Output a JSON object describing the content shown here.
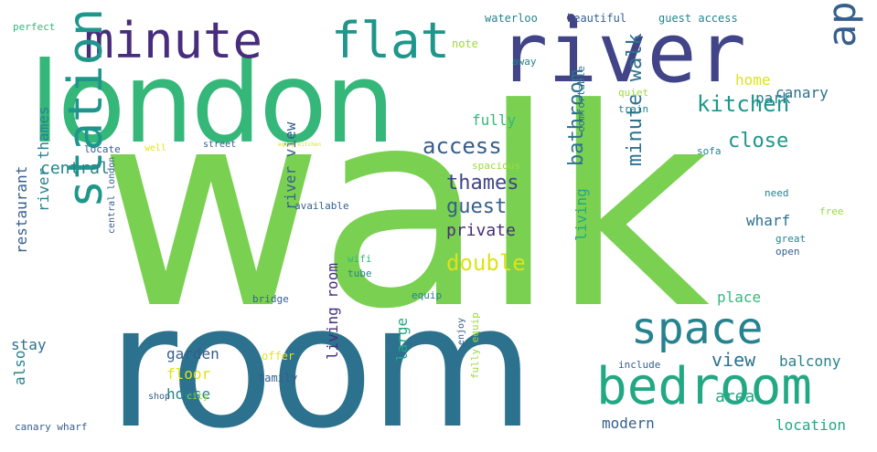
{
  "palette": {
    "background": "#ffffff",
    "yellow_green": "#9bd93c",
    "lime": "#7ad151",
    "green": "#35b779",
    "teal_green": "#22a884",
    "teal": "#1f968b",
    "blue_teal": "#26828e",
    "steel_blue": "#2c718e",
    "slate_blue": "#355f8d",
    "indigo": "#414487",
    "purple": "#472d7b",
    "yellow": "#dde318",
    "pale_yellow": "#e5e419"
  },
  "words": [
    {
      "text": "walk",
      "orientation": "horizontal",
      "color": "#7ad151"
    },
    {
      "text": "london",
      "orientation": "horizontal",
      "color": "#35b779"
    },
    {
      "text": "room",
      "orientation": "horizontal",
      "color": "#2c718e"
    },
    {
      "text": "river",
      "orientation": "horizontal",
      "color": "#414487"
    },
    {
      "text": "minute",
      "orientation": "horizontal",
      "color": "#472d7b"
    },
    {
      "text": "flat",
      "orientation": "horizontal",
      "color": "#1f968b"
    },
    {
      "text": "bedroom",
      "orientation": "horizontal",
      "color": "#22a884"
    },
    {
      "text": "space",
      "orientation": "horizontal",
      "color": "#26828e"
    },
    {
      "text": "apartment",
      "orientation": "vertical",
      "color": "#355f8d"
    },
    {
      "text": "station",
      "orientation": "vertical",
      "color": "#1f968b"
    },
    {
      "text": "kitchen",
      "orientation": "horizontal",
      "color": "#1f968b"
    },
    {
      "text": "access",
      "orientation": "horizontal",
      "color": "#355f8d"
    },
    {
      "text": "thames",
      "orientation": "horizontal",
      "color": "#414487"
    },
    {
      "text": "guest",
      "orientation": "horizontal",
      "color": "#355f8d"
    },
    {
      "text": "close",
      "orientation": "horizontal",
      "color": "#1f968b"
    },
    {
      "text": "bathroom",
      "orientation": "vertical",
      "color": "#2c718e"
    },
    {
      "text": "minute walk",
      "orientation": "vertical",
      "color": "#2c718e"
    },
    {
      "text": "double",
      "orientation": "horizontal",
      "color": "#dde318"
    },
    {
      "text": "private",
      "orientation": "horizontal",
      "color": "#472d7b"
    },
    {
      "text": "central",
      "orientation": "horizontal",
      "color": "#26828e"
    },
    {
      "text": "canary",
      "orientation": "horizontal",
      "color": "#2c718e"
    },
    {
      "text": "home",
      "orientation": "horizontal",
      "color": "#dde318"
    },
    {
      "text": "park",
      "orientation": "horizontal",
      "color": "#26828e"
    },
    {
      "text": "fully",
      "orientation": "horizontal",
      "color": "#35b779"
    },
    {
      "text": "living",
      "orientation": "vertical",
      "color": "#22a884"
    },
    {
      "text": "wharf",
      "orientation": "horizontal",
      "color": "#2c718e"
    },
    {
      "text": "view",
      "orientation": "horizontal",
      "color": "#2c718e"
    },
    {
      "text": "balcony",
      "orientation": "horizontal",
      "color": "#26828e"
    },
    {
      "text": "area",
      "orientation": "horizontal",
      "color": "#22a884"
    },
    {
      "text": "location",
      "orientation": "horizontal",
      "color": "#22a884"
    },
    {
      "text": "modern",
      "orientation": "horizontal",
      "color": "#355f8d"
    },
    {
      "text": "place",
      "orientation": "horizontal",
      "color": "#35b779"
    },
    {
      "text": "garden",
      "orientation": "horizontal",
      "color": "#355f8d"
    },
    {
      "text": "floor",
      "orientation": "horizontal",
      "color": "#dde318"
    },
    {
      "text": "house",
      "orientation": "horizontal",
      "color": "#26828e"
    },
    {
      "text": "stay",
      "orientation": "horizontal",
      "color": "#2c718e"
    },
    {
      "text": "restaurant",
      "orientation": "vertical",
      "color": "#355f8d"
    },
    {
      "text": "river thames",
      "orientation": "vertical",
      "color": "#26828e"
    },
    {
      "text": "also",
      "orientation": "vertical",
      "color": "#26828e"
    },
    {
      "text": "river view",
      "orientation": "vertical",
      "color": "#355f8d"
    },
    {
      "text": "living room",
      "orientation": "vertical",
      "color": "#472d7b"
    },
    {
      "text": "large",
      "orientation": "vertical",
      "color": "#22a884"
    },
    {
      "text": "waterloo",
      "orientation": "horizontal",
      "color": "#26828e"
    },
    {
      "text": "beautiful",
      "orientation": "horizontal",
      "color": "#355f8d"
    },
    {
      "text": "guest access",
      "orientation": "horizontal",
      "color": "#26828e"
    },
    {
      "text": "perfect",
      "orientation": "horizontal",
      "color": "#35b779"
    },
    {
      "text": "note",
      "orientation": "horizontal",
      "color": "#9bd93c"
    },
    {
      "text": "away",
      "orientation": "horizontal",
      "color": "#26828e"
    },
    {
      "text": "quiet",
      "orientation": "horizontal",
      "color": "#9bd93c"
    },
    {
      "text": "train",
      "orientation": "horizontal",
      "color": "#26828e"
    },
    {
      "text": "comfortable",
      "orientation": "vertical",
      "color": "#2c718e"
    },
    {
      "text": "sofa",
      "orientation": "horizontal",
      "color": "#26828e"
    },
    {
      "text": "locate",
      "orientation": "horizontal",
      "color": "#355f8d"
    },
    {
      "text": "well",
      "orientation": "horizontal",
      "color": "#e5e419"
    },
    {
      "text": "street",
      "orientation": "horizontal",
      "color": "#355f8d"
    },
    {
      "text": "equip kitchen",
      "orientation": "horizontal",
      "color": "#dde318"
    },
    {
      "text": "spacious",
      "orientation": "horizontal",
      "color": "#9bd93c"
    },
    {
      "text": "available",
      "orientation": "horizontal",
      "color": "#355f8d"
    },
    {
      "text": "need",
      "orientation": "horizontal",
      "color": "#26828e"
    },
    {
      "text": "free",
      "orientation": "horizontal",
      "color": "#9bd93c"
    },
    {
      "text": "great",
      "orientation": "horizontal",
      "color": "#26828e"
    },
    {
      "text": "open",
      "orientation": "horizontal",
      "color": "#355f8d"
    },
    {
      "text": "wifi",
      "orientation": "horizontal",
      "color": "#35b779"
    },
    {
      "text": "tube",
      "orientation": "horizontal",
      "color": "#26828e"
    },
    {
      "text": "bridge",
      "orientation": "horizontal",
      "color": "#355f8d"
    },
    {
      "text": "equip",
      "orientation": "horizontal",
      "color": "#26828e"
    },
    {
      "text": "central london",
      "orientation": "vertical",
      "color": "#355f8d"
    },
    {
      "text": "offer",
      "orientation": "horizontal",
      "color": "#e5e419"
    },
    {
      "text": "family",
      "orientation": "horizontal",
      "color": "#355f8d"
    },
    {
      "text": "shop",
      "orientation": "horizontal",
      "color": "#355f8d"
    },
    {
      "text": "city",
      "orientation": "horizontal",
      "color": "#9bd93c"
    },
    {
      "text": "include",
      "orientation": "horizontal",
      "color": "#355f8d"
    },
    {
      "text": "enjoy",
      "orientation": "vertical",
      "color": "#355f8d"
    },
    {
      "text": "fully equip",
      "orientation": "vertical",
      "color": "#9bd93c"
    },
    {
      "text": "canary wharf",
      "orientation": "horizontal",
      "color": "#355f8d"
    }
  ]
}
